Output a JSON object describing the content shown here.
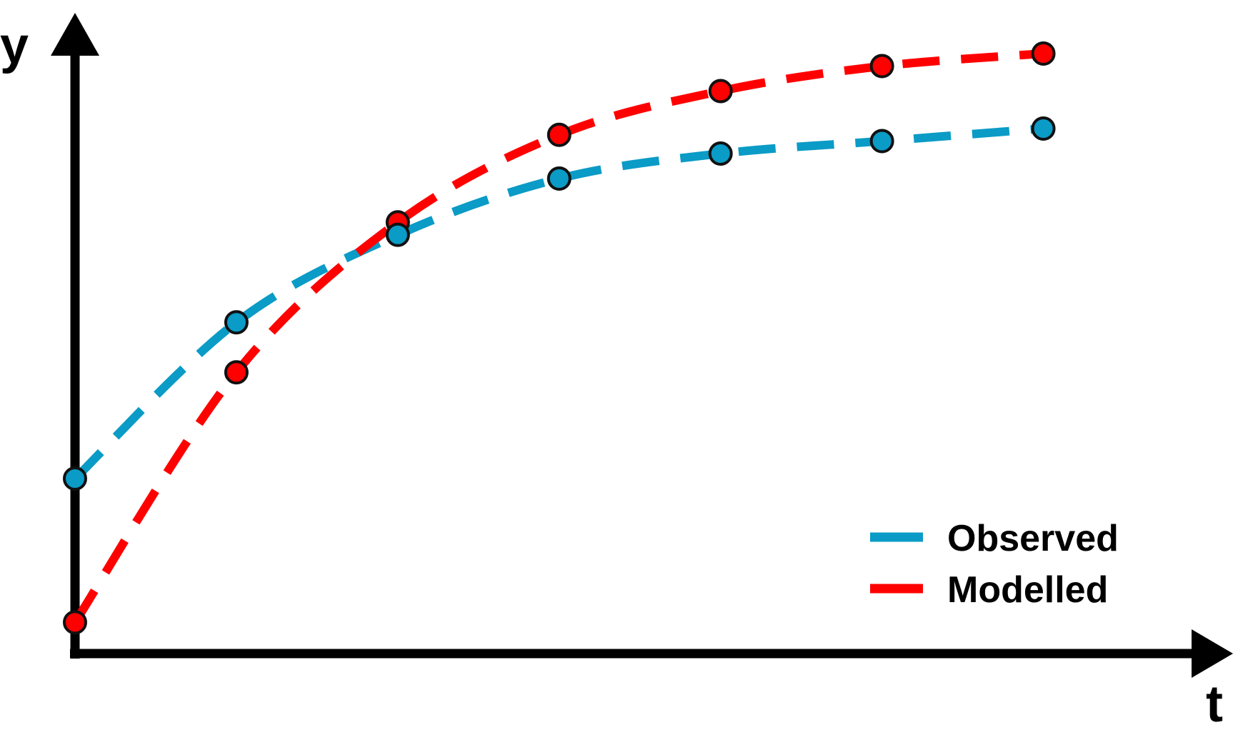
{
  "chart_data": {
    "type": "line",
    "title": "",
    "xlabel": "t",
    "ylabel": "y",
    "x": [
      0,
      1,
      2,
      3,
      4,
      5,
      6
    ],
    "xlim": [
      0,
      6.75
    ],
    "ylim": [
      0,
      1.0
    ],
    "grid": false,
    "legend_position": "bottom-right",
    "series": [
      {
        "name": "Observed",
        "color": "#0a9bc6",
        "line_style": "dashed",
        "marker": "circle",
        "values": [
          0.28,
          0.53,
          0.67,
          0.76,
          0.8,
          0.82,
          0.84
        ]
      },
      {
        "name": "Modelled",
        "color": "#ff0000",
        "line_style": "dashed",
        "marker": "circle",
        "values": [
          0.05,
          0.45,
          0.69,
          0.83,
          0.9,
          0.94,
          0.96
        ]
      }
    ]
  },
  "colors": {
    "axis": "#000000",
    "marker_edge": "#111111",
    "background": "#ffffff"
  }
}
